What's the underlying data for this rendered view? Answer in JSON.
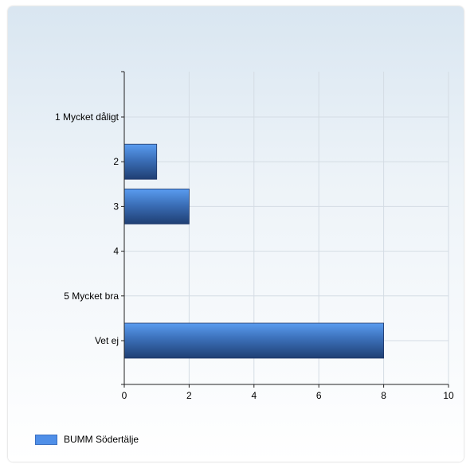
{
  "chart_data": {
    "type": "bar",
    "orientation": "horizontal",
    "categories": [
      "1 Mycket dåligt",
      "2",
      "3",
      "4",
      "5 Mycket bra",
      "Vet ej"
    ],
    "series": [
      {
        "name": "BUMM Södertälje",
        "values": [
          0,
          1,
          2,
          0,
          0,
          8
        ]
      }
    ],
    "xlim": [
      0,
      10
    ],
    "xticks": [
      0,
      2,
      4,
      6,
      8,
      10
    ],
    "grid": true,
    "legend_position": "bottom-left",
    "bar_color": "#4f8fe8"
  }
}
